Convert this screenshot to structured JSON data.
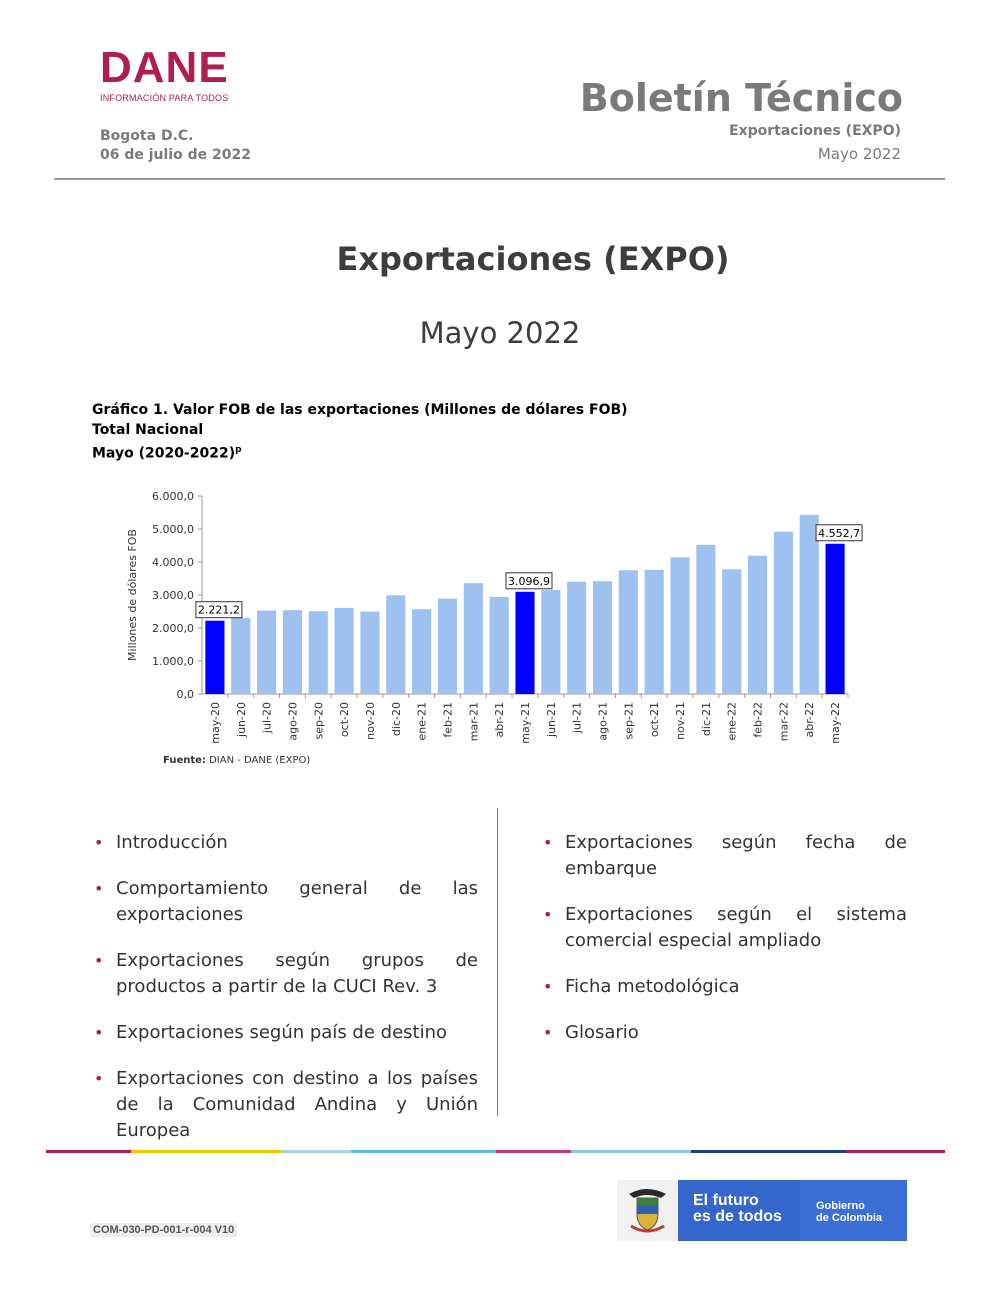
{
  "header": {
    "logo_text": "DANE",
    "logo_sub": "INFORMACIÓN PARA TODOS",
    "city": "Bogota D.C.",
    "date": "06 de julio de 2022",
    "bulletin_title": "Boletín Técnico",
    "bulletin_subject": "Exportaciones (EXPO)",
    "bulletin_period": "Mayo 2022"
  },
  "main": {
    "title": "Exportaciones (EXPO)",
    "period": "Mayo 2022"
  },
  "chart_caption": {
    "line1": "Gráfico 1. Valor FOB de las exportaciones (Millones de dólares FOB)",
    "line2": "Total Nacional",
    "line3": "Mayo (2020-2022)",
    "sup": "p"
  },
  "source": {
    "label": "Fuente:",
    "text": " DIAN - DANE (EXPO)"
  },
  "chart_data": {
    "type": "bar",
    "ylabel": "Millones de dólares FOB",
    "ylim": [
      0,
      6000
    ],
    "yticks": [
      "0,0",
      "1.000,0",
      "2.000,0",
      "3.000,0",
      "4.000,0",
      "5.000,0",
      "6.000,0"
    ],
    "categories": [
      "may-20",
      "jun-20",
      "jul-20",
      "ago-20",
      "sep-20",
      "oct-20",
      "nov-20",
      "dic-20",
      "ene-21",
      "feb-21",
      "mar-21",
      "abr-21",
      "may-21",
      "jun-21",
      "jul-21",
      "ago-21",
      "sep-21",
      "oct-21",
      "nov-21",
      "dic-21",
      "ene-22",
      "feb-22",
      "mar-22",
      "abr-22",
      "may-22"
    ],
    "values": [
      2221.2,
      2300,
      2530,
      2540,
      2510,
      2610,
      2500,
      2990,
      2570,
      2890,
      3360,
      2940,
      3096.9,
      3150,
      3400,
      3420,
      3750,
      3760,
      4140,
      4520,
      3780,
      4190,
      4920,
      5430,
      4552.7
    ],
    "highlight_indices": [
      0,
      12,
      24
    ],
    "highlight_color": "#0000ff",
    "bar_color": "#9ec1f0",
    "data_labels": [
      {
        "index": 0,
        "text": "2.221,2"
      },
      {
        "index": 12,
        "text": "3.096,9"
      },
      {
        "index": 24,
        "text": "4.552,7"
      }
    ]
  },
  "contents_left": [
    "Introducción",
    "Comportamiento general de las exportaciones",
    "Exportaciones según grupos de productos a partir de la CUCI Rev. 3",
    "Exportaciones según país de destino",
    "Exportaciones con destino a los países de la Comunidad Andina y Unión Europea"
  ],
  "contents_right": [
    "Exportaciones según fecha de embarque",
    "Exportaciones según el sistema comercial especial ampliado",
    "Ficha metodológica",
    "Glosario"
  ],
  "footer": {
    "doc_code": "COM-030-PD-001-r-004 V10",
    "gov_slogan_1": "El futuro",
    "gov_slogan_2": "es de todos",
    "gov_name_1": "Gobierno",
    "gov_name_2": "de Colombia",
    "line_colors": [
      "#b01e4c",
      "#f2c500",
      "#a7d3ea",
      "#5fb8e0",
      "#c2377e",
      "#8ac6e6",
      "#1e3b8a",
      "#b01e4c"
    ]
  }
}
